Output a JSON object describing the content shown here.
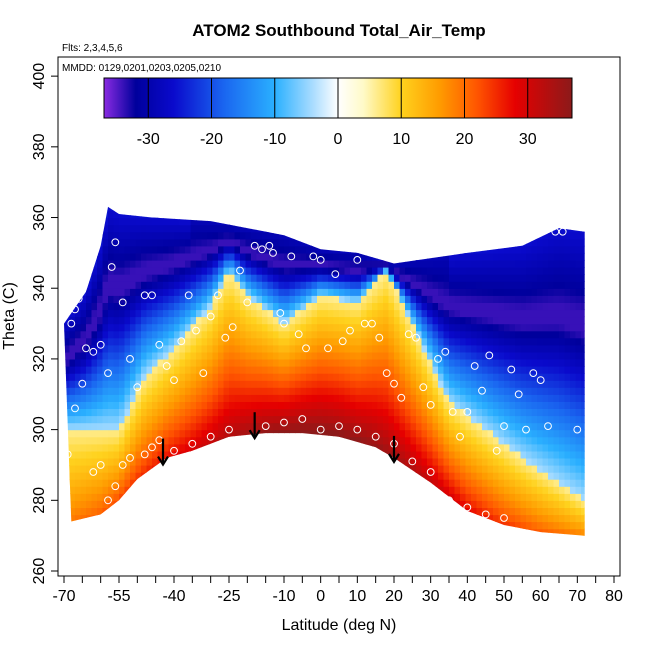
{
  "chart_data": {
    "type": "heatmap",
    "title": "ATOM2 Southbound Total_Air_Temp",
    "annotations": [
      "Flts: 2,3,4,5,6",
      "MMDD: 0129,0201,0203,0205,0210"
    ],
    "xlabel": "Latitude (deg N)",
    "ylabel": "Theta (C)",
    "xlim": [
      -70,
      80
    ],
    "ylim": [
      260,
      400
    ],
    "x_ticks": [
      -70,
      -55,
      -40,
      -25,
      -10,
      0,
      10,
      20,
      30,
      40,
      50,
      60,
      70,
      80
    ],
    "x_minor_ticks": [
      -65,
      -60,
      -50,
      -45,
      -35,
      -30,
      -20,
      -15,
      -5,
      5,
      15,
      25,
      35,
      45,
      55,
      65,
      75
    ],
    "y_ticks": [
      260,
      280,
      300,
      320,
      340,
      360,
      380,
      400
    ],
    "colorbar": {
      "range": [
        -37,
        37
      ],
      "ticks": [
        -30,
        -20,
        -10,
        0,
        10,
        20,
        30
      ],
      "placement": "top inside plot"
    },
    "colormap": [
      {
        "v": -37,
        "c": "#8a2be2"
      },
      {
        "v": -32,
        "c": "#00009c"
      },
      {
        "v": -26,
        "c": "#0a0acc"
      },
      {
        "v": -18,
        "c": "#1a66f0"
      },
      {
        "v": -10,
        "c": "#2ab0ff"
      },
      {
        "v": -4,
        "c": "#a9dcff"
      },
      {
        "v": 0,
        "c": "#ffffff"
      },
      {
        "v": 4,
        "c": "#fffac8"
      },
      {
        "v": 10,
        "c": "#ffd21e"
      },
      {
        "v": 16,
        "c": "#ff9c00"
      },
      {
        "v": 22,
        "c": "#ff5500"
      },
      {
        "v": 28,
        "c": "#e60000"
      },
      {
        "v": 37,
        "c": "#8c1a1a"
      }
    ],
    "domain_top_theta": [
      [
        -70,
        330
      ],
      [
        -64,
        339
      ],
      [
        -60,
        352
      ],
      [
        -58,
        363
      ],
      [
        -55,
        361
      ],
      [
        -46,
        360
      ],
      [
        -30,
        359
      ],
      [
        -10,
        355
      ],
      [
        0,
        351
      ],
      [
        10,
        350
      ],
      [
        20,
        347
      ],
      [
        40,
        350
      ],
      [
        55,
        352
      ],
      [
        65,
        357
      ],
      [
        72,
        356
      ]
    ],
    "domain_bottom_theta": [
      [
        -68,
        274
      ],
      [
        -60,
        276
      ],
      [
        -55,
        280
      ],
      [
        -50,
        286
      ],
      [
        -42,
        292
      ],
      [
        -35,
        294
      ],
      [
        -25,
        298
      ],
      [
        -15,
        299
      ],
      [
        -5,
        299
      ],
      [
        5,
        298
      ],
      [
        15,
        295
      ],
      [
        20,
        292
      ],
      [
        30,
        285
      ],
      [
        40,
        277
      ],
      [
        50,
        273
      ],
      [
        60,
        271
      ],
      [
        72,
        270
      ]
    ],
    "warm_core_top_theta": [
      [
        -55,
        300
      ],
      [
        -48,
        315
      ],
      [
        -40,
        323
      ],
      [
        -30,
        335
      ],
      [
        -25,
        345
      ],
      [
        -20,
        338
      ],
      [
        -10,
        330
      ],
      [
        0,
        338
      ],
      [
        10,
        336
      ],
      [
        18,
        345
      ],
      [
        25,
        330
      ],
      [
        35,
        308
      ],
      [
        45,
        300
      ],
      [
        55,
        292
      ],
      [
        65,
        285
      ],
      [
        72,
        280
      ]
    ],
    "arrows_lat": [
      -43,
      -18,
      20
    ],
    "sample_points": [
      [
        -68,
        330
      ],
      [
        -67,
        334
      ],
      [
        -66,
        337
      ],
      [
        -64,
        323
      ],
      [
        -62,
        322
      ],
      [
        -60,
        324
      ],
      [
        -58,
        316
      ],
      [
        -57,
        346
      ],
      [
        -56,
        353
      ],
      [
        -54,
        336
      ],
      [
        -52,
        320
      ],
      [
        -50,
        312
      ],
      [
        -48,
        338
      ],
      [
        -46,
        338
      ],
      [
        -44,
        324
      ],
      [
        -42,
        318
      ],
      [
        -40,
        314
      ],
      [
        -38,
        325
      ],
      [
        -36,
        338
      ],
      [
        -34,
        328
      ],
      [
        -32,
        316
      ],
      [
        -30,
        332
      ],
      [
        -28,
        338
      ],
      [
        -26,
        326
      ],
      [
        -24,
        329
      ],
      [
        -22,
        345
      ],
      [
        -20,
        336
      ],
      [
        -18,
        352
      ],
      [
        -16,
        351
      ],
      [
        -14,
        352
      ],
      [
        -13,
        350
      ],
      [
        -11,
        333
      ],
      [
        -10,
        330
      ],
      [
        -8,
        349
      ],
      [
        -6,
        327
      ],
      [
        -4,
        323
      ],
      [
        -2,
        349
      ],
      [
        0,
        348
      ],
      [
        2,
        323
      ],
      [
        4,
        344
      ],
      [
        6,
        325
      ],
      [
        8,
        328
      ],
      [
        10,
        348
      ],
      [
        12,
        330
      ],
      [
        14,
        330
      ],
      [
        16,
        326
      ],
      [
        18,
        316
      ],
      [
        20,
        313
      ],
      [
        22,
        309
      ],
      [
        24,
        327
      ],
      [
        26,
        326
      ],
      [
        28,
        312
      ],
      [
        30,
        307
      ],
      [
        32,
        320
      ],
      [
        34,
        322
      ],
      [
        36,
        305
      ],
      [
        38,
        298
      ],
      [
        40,
        305
      ],
      [
        42,
        318
      ],
      [
        44,
        311
      ],
      [
        46,
        321
      ],
      [
        48,
        294
      ],
      [
        50,
        301
      ],
      [
        52,
        317
      ],
      [
        54,
        310
      ],
      [
        56,
        300
      ],
      [
        58,
        316
      ],
      [
        60,
        314
      ],
      [
        62,
        301
      ],
      [
        64,
        356
      ],
      [
        66,
        356
      ],
      [
        70,
        300
      ],
      [
        -70,
        298
      ],
      [
        -69,
        293
      ],
      [
        -67,
        306
      ],
      [
        -65,
        313
      ],
      [
        -62,
        288
      ],
      [
        -60,
        290
      ],
      [
        -58,
        280
      ],
      [
        -56,
        284
      ],
      [
        -54,
        290
      ],
      [
        -52,
        292
      ],
      [
        -48,
        293
      ],
      [
        -46,
        295
      ],
      [
        -44,
        297
      ],
      [
        -40,
        294
      ],
      [
        -35,
        296
      ],
      [
        -30,
        298
      ],
      [
        -25,
        300
      ],
      [
        -15,
        301
      ],
      [
        -10,
        302
      ],
      [
        -5,
        303
      ],
      [
        0,
        300
      ],
      [
        5,
        301
      ],
      [
        10,
        300
      ],
      [
        15,
        298
      ],
      [
        20,
        296
      ],
      [
        25,
        291
      ],
      [
        30,
        288
      ],
      [
        35,
        280
      ],
      [
        40,
        278
      ],
      [
        45,
        276
      ],
      [
        50,
        275
      ]
    ]
  }
}
